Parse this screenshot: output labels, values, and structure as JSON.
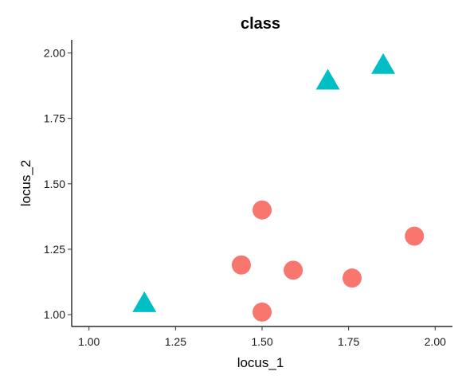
{
  "chart_data": {
    "type": "scatter",
    "title": "class",
    "xlabel": "locus_1",
    "ylabel": "locus_2",
    "xlim": [
      0.95,
      2.05
    ],
    "ylim": [
      0.955,
      2.05
    ],
    "x_ticks": [
      1.0,
      1.25,
      1.5,
      1.75,
      2.0
    ],
    "x_tick_labels": [
      "1.00",
      "1.25",
      "1.50",
      "1.75",
      "2.00"
    ],
    "y_ticks": [
      1.0,
      1.25,
      1.5,
      1.75,
      2.0
    ],
    "y_tick_labels": [
      "1.00",
      "1.25",
      "1.50",
      "1.75",
      "2.00"
    ],
    "grid": false,
    "legend": "none",
    "series": [
      {
        "marker": "circle",
        "color": "#F8766D",
        "points": [
          {
            "x": 1.5,
            "y": 1.4
          },
          {
            "x": 1.44,
            "y": 1.19
          },
          {
            "x": 1.59,
            "y": 1.17
          },
          {
            "x": 1.76,
            "y": 1.14
          },
          {
            "x": 1.94,
            "y": 1.3
          },
          {
            "x": 1.5,
            "y": 1.01
          }
        ]
      },
      {
        "marker": "triangle",
        "color": "#00BFC4",
        "points": [
          {
            "x": 1.16,
            "y": 1.04
          },
          {
            "x": 1.69,
            "y": 1.89
          },
          {
            "x": 1.85,
            "y": 1.95
          }
        ]
      }
    ]
  }
}
